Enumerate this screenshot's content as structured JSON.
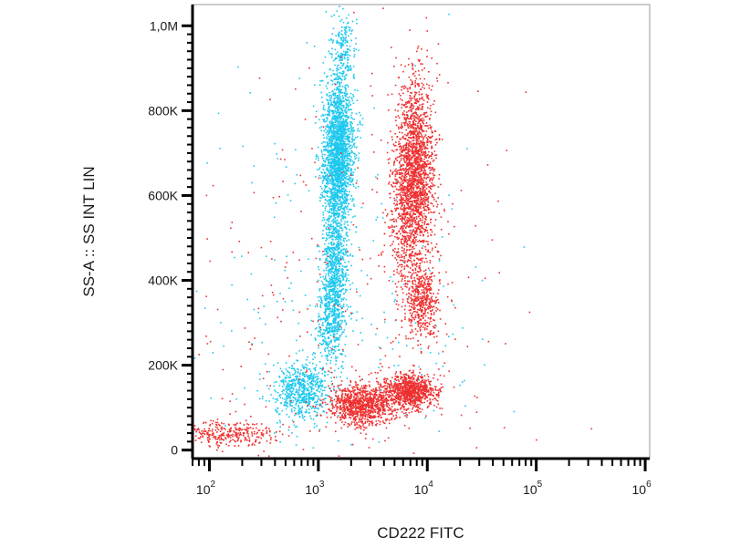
{
  "chart_data": {
    "type": "scatter",
    "title": "",
    "xlabel": "CD222 FITC",
    "ylabel": "SS-A :: SS INT LIN",
    "x_scale": "log",
    "xlim": [
      70,
      1100000
    ],
    "ylim": [
      -20000,
      1050000
    ],
    "x_ticks": [
      {
        "value": 100,
        "base": "10",
        "exp": "2"
      },
      {
        "value": 1000,
        "base": "10",
        "exp": "3"
      },
      {
        "value": 10000,
        "base": "10",
        "exp": "4"
      },
      {
        "value": 100000,
        "base": "10",
        "exp": "5"
      },
      {
        "value": 1000000,
        "base": "10",
        "exp": "6"
      }
    ],
    "y_ticks": [
      {
        "value": 0,
        "label": "0"
      },
      {
        "value": 200000,
        "label": "200K"
      },
      {
        "value": 400000,
        "label": "400K"
      },
      {
        "value": 600000,
        "label": "600K"
      },
      {
        "value": 800000,
        "label": "800K"
      },
      {
        "value": 1000000,
        "label": "1,0M"
      }
    ],
    "grid": false,
    "series": [
      {
        "color": "#1ec8ee",
        "clusters": [
          {
            "x": 1500,
            "y": 700000,
            "sx": 0.07,
            "sy": 90000,
            "n": 2200
          },
          {
            "x": 1400,
            "y": 440000,
            "sx": 0.06,
            "sy": 70000,
            "n": 700
          },
          {
            "x": 1300,
            "y": 300000,
            "sx": 0.07,
            "sy": 50000,
            "n": 450
          },
          {
            "x": 700,
            "y": 140000,
            "sx": 0.13,
            "sy": 35000,
            "n": 650
          },
          {
            "x": 1700,
            "y": 950000,
            "sx": 0.05,
            "sy": 40000,
            "n": 180
          },
          {
            "x": 1500,
            "y": 350000,
            "sx": 0.65,
            "sy": 280000,
            "n": 260
          }
        ]
      },
      {
        "color": "#ee3030",
        "clusters": [
          {
            "x": 7500,
            "y": 660000,
            "sx": 0.09,
            "sy": 110000,
            "n": 2000
          },
          {
            "x": 9000,
            "y": 350000,
            "sx": 0.08,
            "sy": 45000,
            "n": 450
          },
          {
            "x": 2500,
            "y": 110000,
            "sx": 0.15,
            "sy": 25000,
            "n": 1000
          },
          {
            "x": 7000,
            "y": 140000,
            "sx": 0.12,
            "sy": 20000,
            "n": 900
          },
          {
            "x": 150,
            "y": 40000,
            "sx": 0.22,
            "sy": 15000,
            "n": 300
          },
          {
            "x": 6000,
            "y": 500000,
            "sx": 0.1,
            "sy": 70000,
            "n": 220
          },
          {
            "x": 2000,
            "y": 350000,
            "sx": 0.75,
            "sy": 300000,
            "n": 300
          }
        ]
      }
    ]
  }
}
